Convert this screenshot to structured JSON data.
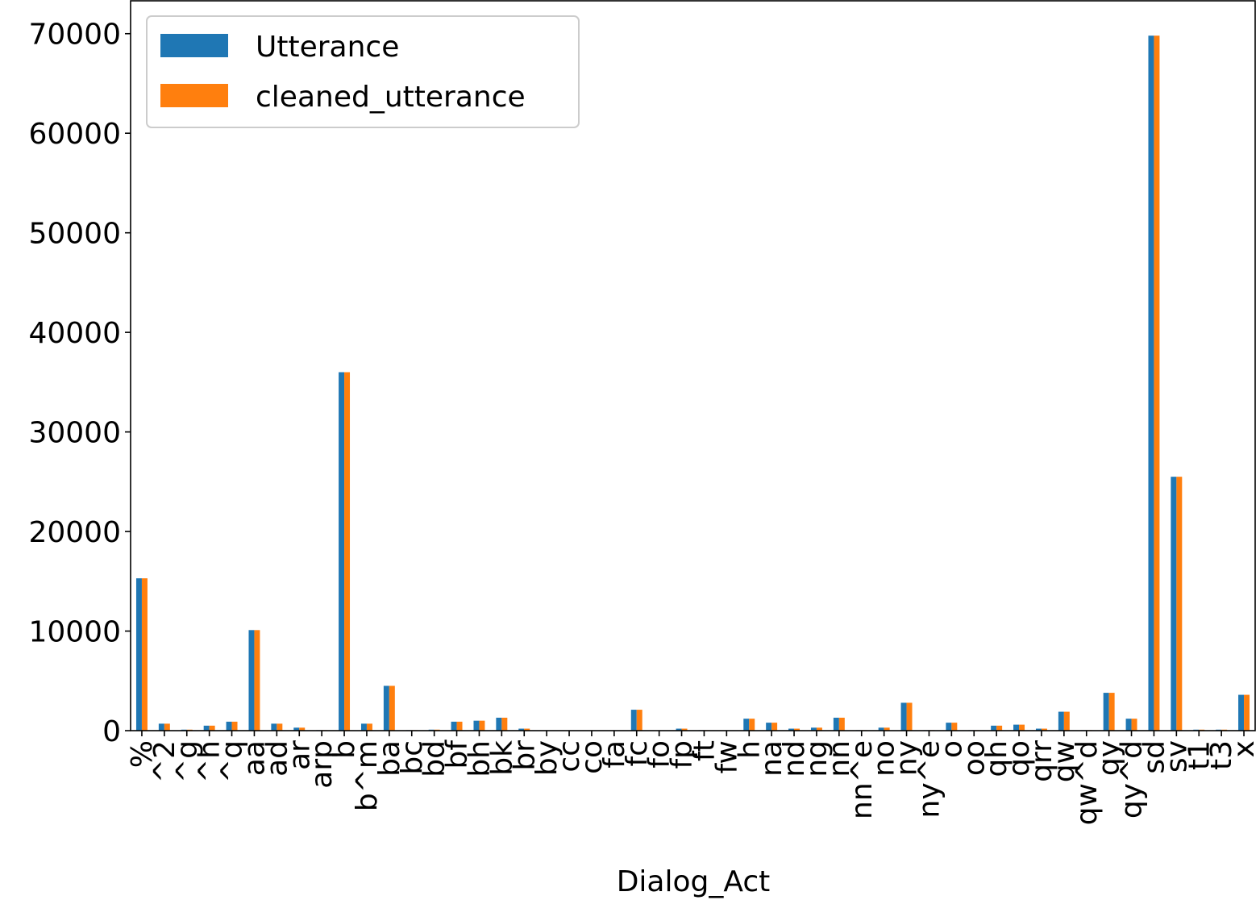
{
  "chart_data": {
    "type": "bar",
    "x_label": "Dialog_Act",
    "categories": [
      "%",
      "^2",
      "^g",
      "^h",
      "^q",
      "aa",
      "ad",
      "ar",
      "arp",
      "b",
      "b^m",
      "ba",
      "bc",
      "bd",
      "bf",
      "bh",
      "bk",
      "br",
      "by",
      "cc",
      "co",
      "fa",
      "fc",
      "fo",
      "fp",
      "ft",
      "fw",
      "h",
      "na",
      "nd",
      "ng",
      "nn",
      "nn^e",
      "no",
      "ny",
      "ny^e",
      "o",
      "oo",
      "qh",
      "qo",
      "qrr",
      "qw",
      "qw^d",
      "qy",
      "qy^d",
      "sd",
      "sv",
      "t1",
      "t3",
      "x"
    ],
    "series": [
      {
        "name": "Utterance",
        "color": "#1f77b4",
        "values": [
          15300,
          700,
          100,
          500,
          900,
          10100,
          700,
          300,
          50,
          36000,
          700,
          4500,
          50,
          100,
          900,
          1000,
          1300,
          200,
          30,
          20,
          20,
          30,
          2100,
          30,
          200,
          50,
          30,
          1200,
          800,
          200,
          300,
          1300,
          50,
          300,
          2800,
          50,
          800,
          50,
          500,
          600,
          200,
          1900,
          50,
          3800,
          1200,
          69800,
          25500,
          100,
          100,
          3600
        ]
      },
      {
        "name": "cleaned_utterance",
        "color": "#ff7f0e",
        "values": [
          15300,
          700,
          100,
          500,
          900,
          10100,
          700,
          300,
          50,
          36000,
          700,
          4500,
          50,
          100,
          900,
          1000,
          1300,
          200,
          30,
          20,
          20,
          30,
          2100,
          30,
          200,
          50,
          30,
          1200,
          800,
          200,
          300,
          1300,
          50,
          300,
          2800,
          50,
          800,
          50,
          500,
          600,
          200,
          1900,
          50,
          3800,
          1200,
          69800,
          25500,
          100,
          100,
          3600
        ]
      }
    ],
    "ylim": [
      0,
      73300
    ],
    "yticks": [
      0,
      10000,
      20000,
      30000,
      40000,
      50000,
      60000,
      70000
    ],
    "grid": false,
    "legend": "upper left"
  }
}
